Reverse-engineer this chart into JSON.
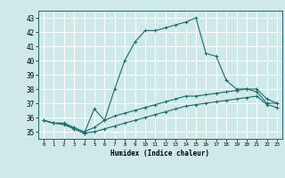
{
  "background_color": "#cfe9e9",
  "grid_color": "#ffffff",
  "line_color": "#1a6b6b",
  "x_label": "Humidex (Indice chaleur)",
  "x_ticks": [
    0,
    1,
    2,
    3,
    4,
    5,
    6,
    7,
    8,
    9,
    10,
    11,
    12,
    13,
    14,
    15,
    16,
    17,
    18,
    19,
    20,
    21,
    22,
    23
  ],
  "y_ticks": [
    35,
    36,
    37,
    38,
    39,
    40,
    41,
    42,
    43
  ],
  "ylim": [
    34.5,
    43.5
  ],
  "xlim": [
    -0.5,
    23.5
  ],
  "line1_x": [
    0,
    1,
    2,
    3,
    4,
    5,
    6,
    7,
    8,
    9,
    10,
    11,
    12,
    13,
    14,
    15,
    16,
    17,
    18,
    19,
    20,
    21,
    22,
    23
  ],
  "line1_y": [
    35.8,
    35.6,
    35.6,
    35.2,
    34.9,
    36.6,
    35.8,
    38.0,
    40.0,
    41.3,
    42.1,
    42.1,
    42.3,
    42.5,
    42.7,
    43.0,
    40.5,
    40.3,
    38.6,
    38.0,
    38.0,
    37.8,
    37.0,
    37.0
  ],
  "line2_x": [
    0,
    1,
    2,
    3,
    4,
    5,
    6,
    7,
    8,
    9,
    10,
    11,
    12,
    13,
    14,
    15,
    16,
    17,
    18,
    19,
    20,
    21,
    22,
    23
  ],
  "line2_y": [
    35.8,
    35.6,
    35.6,
    35.3,
    35.0,
    35.3,
    35.8,
    36.1,
    36.3,
    36.5,
    36.7,
    36.9,
    37.1,
    37.3,
    37.5,
    37.5,
    37.6,
    37.7,
    37.8,
    37.9,
    38.0,
    38.0,
    37.3,
    37.0
  ],
  "line3_x": [
    0,
    1,
    2,
    3,
    4,
    5,
    6,
    7,
    8,
    9,
    10,
    11,
    12,
    13,
    14,
    15,
    16,
    17,
    18,
    19,
    20,
    21,
    22,
    23
  ],
  "line3_y": [
    35.8,
    35.6,
    35.5,
    35.2,
    34.9,
    35.0,
    35.2,
    35.4,
    35.6,
    35.8,
    36.0,
    36.2,
    36.4,
    36.6,
    36.8,
    36.9,
    37.0,
    37.1,
    37.2,
    37.3,
    37.4,
    37.5,
    36.9,
    36.7
  ],
  "figsize": [
    3.2,
    2.0
  ],
  "dpi": 100
}
